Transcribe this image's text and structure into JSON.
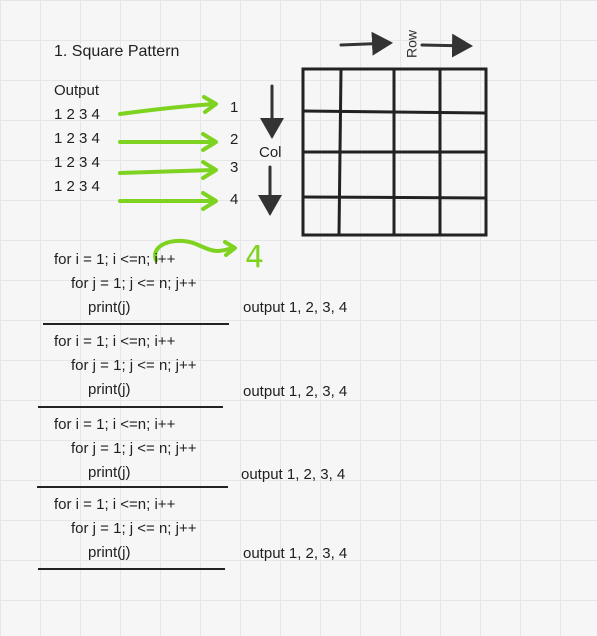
{
  "title": "1. Square Pattern",
  "output": {
    "header": "Output",
    "lines": [
      "1 2 3 4",
      "1 2 3 4",
      "1 2 3 4",
      "1 2 3 4"
    ],
    "row_numbers": [
      "1",
      "2",
      "3",
      "4"
    ]
  },
  "grid": {
    "col_label": "Col",
    "row_label": "Row",
    "rows": 4,
    "cols": 4
  },
  "annotation": "4",
  "code_blocks": [
    {
      "line1": "for i = 1; i <=n; i++",
      "line2": "for j = 1; j <= n; j++",
      "line3": "print(j)",
      "result": "output 1, 2, 3, 4"
    },
    {
      "line1": "for i = 1; i <=n; i++",
      "line2": "for j = 1; j <= n; j++",
      "line3": "print(j)",
      "result": "output 1, 2, 3, 4"
    },
    {
      "line1": "for i = 1; i <=n; i++",
      "line2": "for j = 1; j <= n; j++",
      "line3": "print(j)",
      "result": "output 1, 2, 3, 4"
    },
    {
      "line1": "for i = 1; i <=n; i++",
      "line2": "for j = 1; j <= n; j++",
      "line3": "print(j)",
      "result": "output 1, 2, 3, 4"
    }
  ],
  "colors": {
    "accent_green": "#7ed321",
    "ink": "#222222"
  }
}
